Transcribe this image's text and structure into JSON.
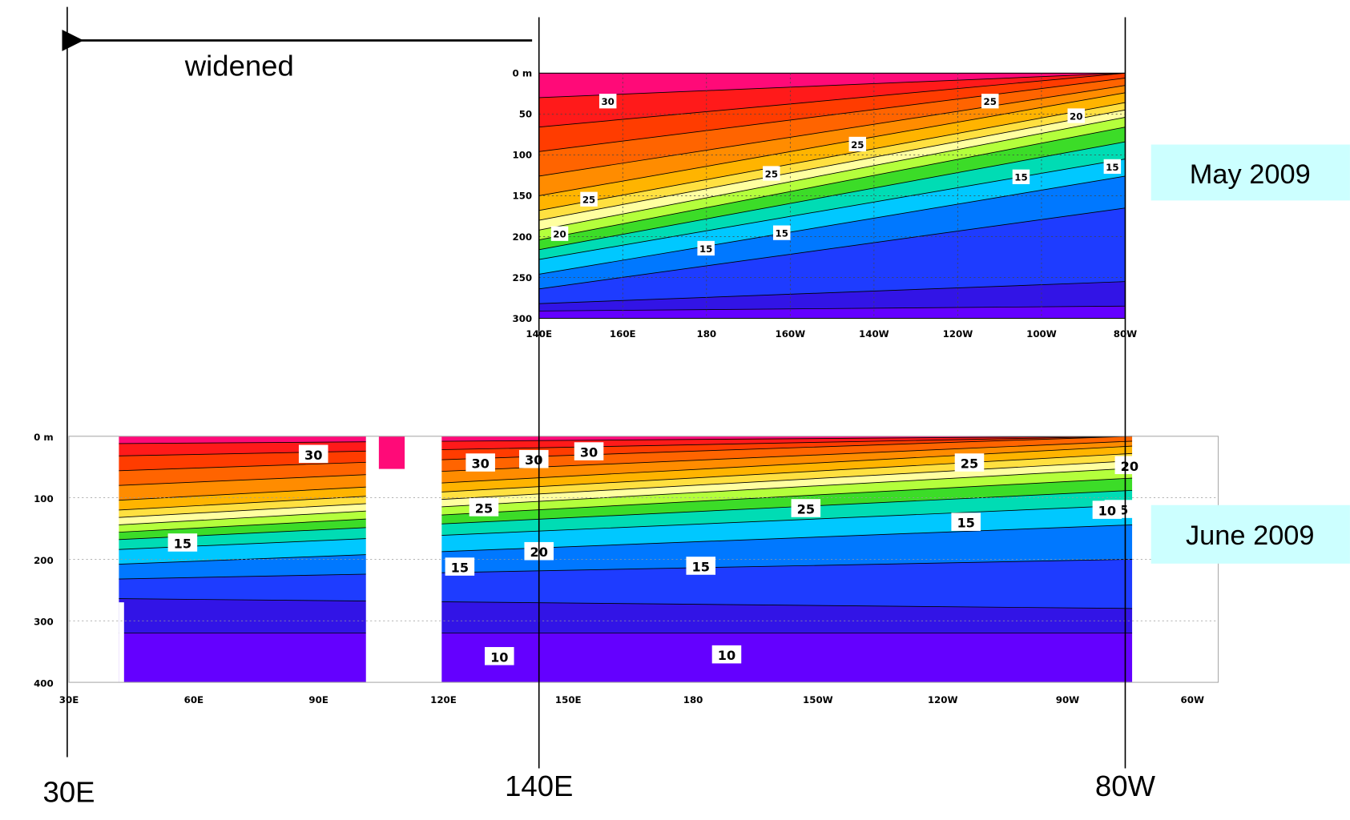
{
  "annotation": "widened",
  "panels": [
    {
      "label": "May 2009",
      "yticks": [
        "0 m",
        "50",
        "100",
        "150",
        "200",
        "250",
        "300"
      ],
      "xticks": [
        "140E",
        "160E",
        "180",
        "160W",
        "140W",
        "120W",
        "100W",
        "80W"
      ],
      "contour_labels": [
        "30",
        "25",
        "20",
        "25",
        "25",
        "25",
        "20",
        "15",
        "15",
        "15",
        "15"
      ]
    },
    {
      "label": "June 2009",
      "yticks": [
        "0 m",
        "100",
        "200",
        "300",
        "400"
      ],
      "xticks": [
        "30E",
        "60E",
        "90E",
        "120E",
        "150E",
        "180",
        "150W",
        "120W",
        "90W",
        "60W"
      ],
      "contour_labels": [
        "30",
        "30",
        "30",
        "30",
        "25",
        "25",
        "25",
        "20",
        "20",
        "15",
        "15",
        "15",
        "15",
        "15",
        "10",
        "10",
        "10"
      ]
    }
  ],
  "bottom_labels": [
    "30E",
    "140E",
    "80W"
  ]
}
